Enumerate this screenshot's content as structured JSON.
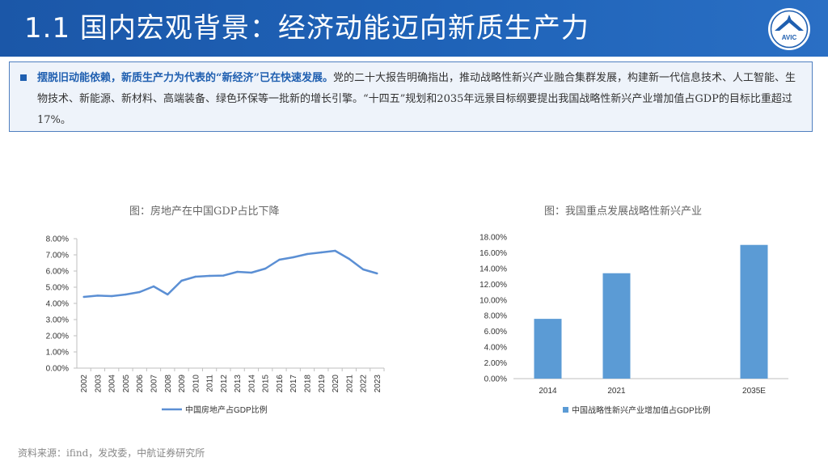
{
  "header": {
    "title": "1.1 国内宏观背景：经济动能迈向新质生产力",
    "logo_text": "AVIC"
  },
  "summary": {
    "lead": "摆脱旧动能依赖，新质生产力为代表的“新经济”已在快速发展。",
    "body": "党的二十大报告明确指出，推动战略性新兴产业融合集群发展，构建新一代信息技术、人工智能、生物技术、新能源、新材料、高端装备、绿色环保等一批新的增长引擎。“十四五”规划和2035年远景目标纲要提出我国战略性新兴产业增加值占GDP的目标比重超过17%。"
  },
  "colors": {
    "header_bg": "#1f5fb0",
    "line": "#5b8fd4",
    "bar": "#5b9bd5",
    "axis": "#bfbfbf"
  },
  "chart_data": [
    {
      "type": "line",
      "title": "图：房地产在中国GDP占比下降",
      "x": [
        "2002",
        "2003",
        "2004",
        "2005",
        "2006",
        "2007",
        "2008",
        "2009",
        "2010",
        "2011",
        "2012",
        "2013",
        "2014",
        "2015",
        "2016",
        "2017",
        "2018",
        "2019",
        "2020",
        "2021",
        "2022",
        "2023"
      ],
      "series": [
        {
          "name": "中国房地产占GDP比例",
          "values": [
            4.4,
            4.48,
            4.45,
            4.55,
            4.7,
            5.05,
            4.55,
            5.4,
            5.65,
            5.7,
            5.72,
            5.95,
            5.9,
            6.15,
            6.7,
            6.85,
            7.05,
            7.15,
            7.25,
            6.75,
            6.1,
            5.85
          ]
        }
      ],
      "yticks": [
        "8.00%",
        "7.00%",
        "6.00%",
        "5.00%",
        "4.00%",
        "3.00%",
        "2.00%",
        "1.00%",
        "0.00%"
      ],
      "ylim": [
        0,
        8
      ],
      "xlabel": "",
      "ylabel": "",
      "legend": "bottom"
    },
    {
      "type": "bar",
      "title": "图：我国重点发展战略性新兴产业",
      "categories": [
        "2014",
        "2021",
        "",
        "2035E"
      ],
      "series": [
        {
          "name": "中国战略性新兴产业增加值占GDP比例",
          "values": [
            7.6,
            13.4,
            null,
            17.0
          ]
        }
      ],
      "yticks": [
        "18.00%",
        "16.00%",
        "14.00%",
        "12.00%",
        "10.00%",
        "8.00%",
        "6.00%",
        "4.00%",
        "2.00%",
        "0.00%"
      ],
      "ylim": [
        0,
        18
      ],
      "xlabel": "",
      "ylabel": "",
      "legend": "bottom"
    }
  ],
  "footer": {
    "source": "资料来源：ifind，发改委，中航证券研究所"
  }
}
